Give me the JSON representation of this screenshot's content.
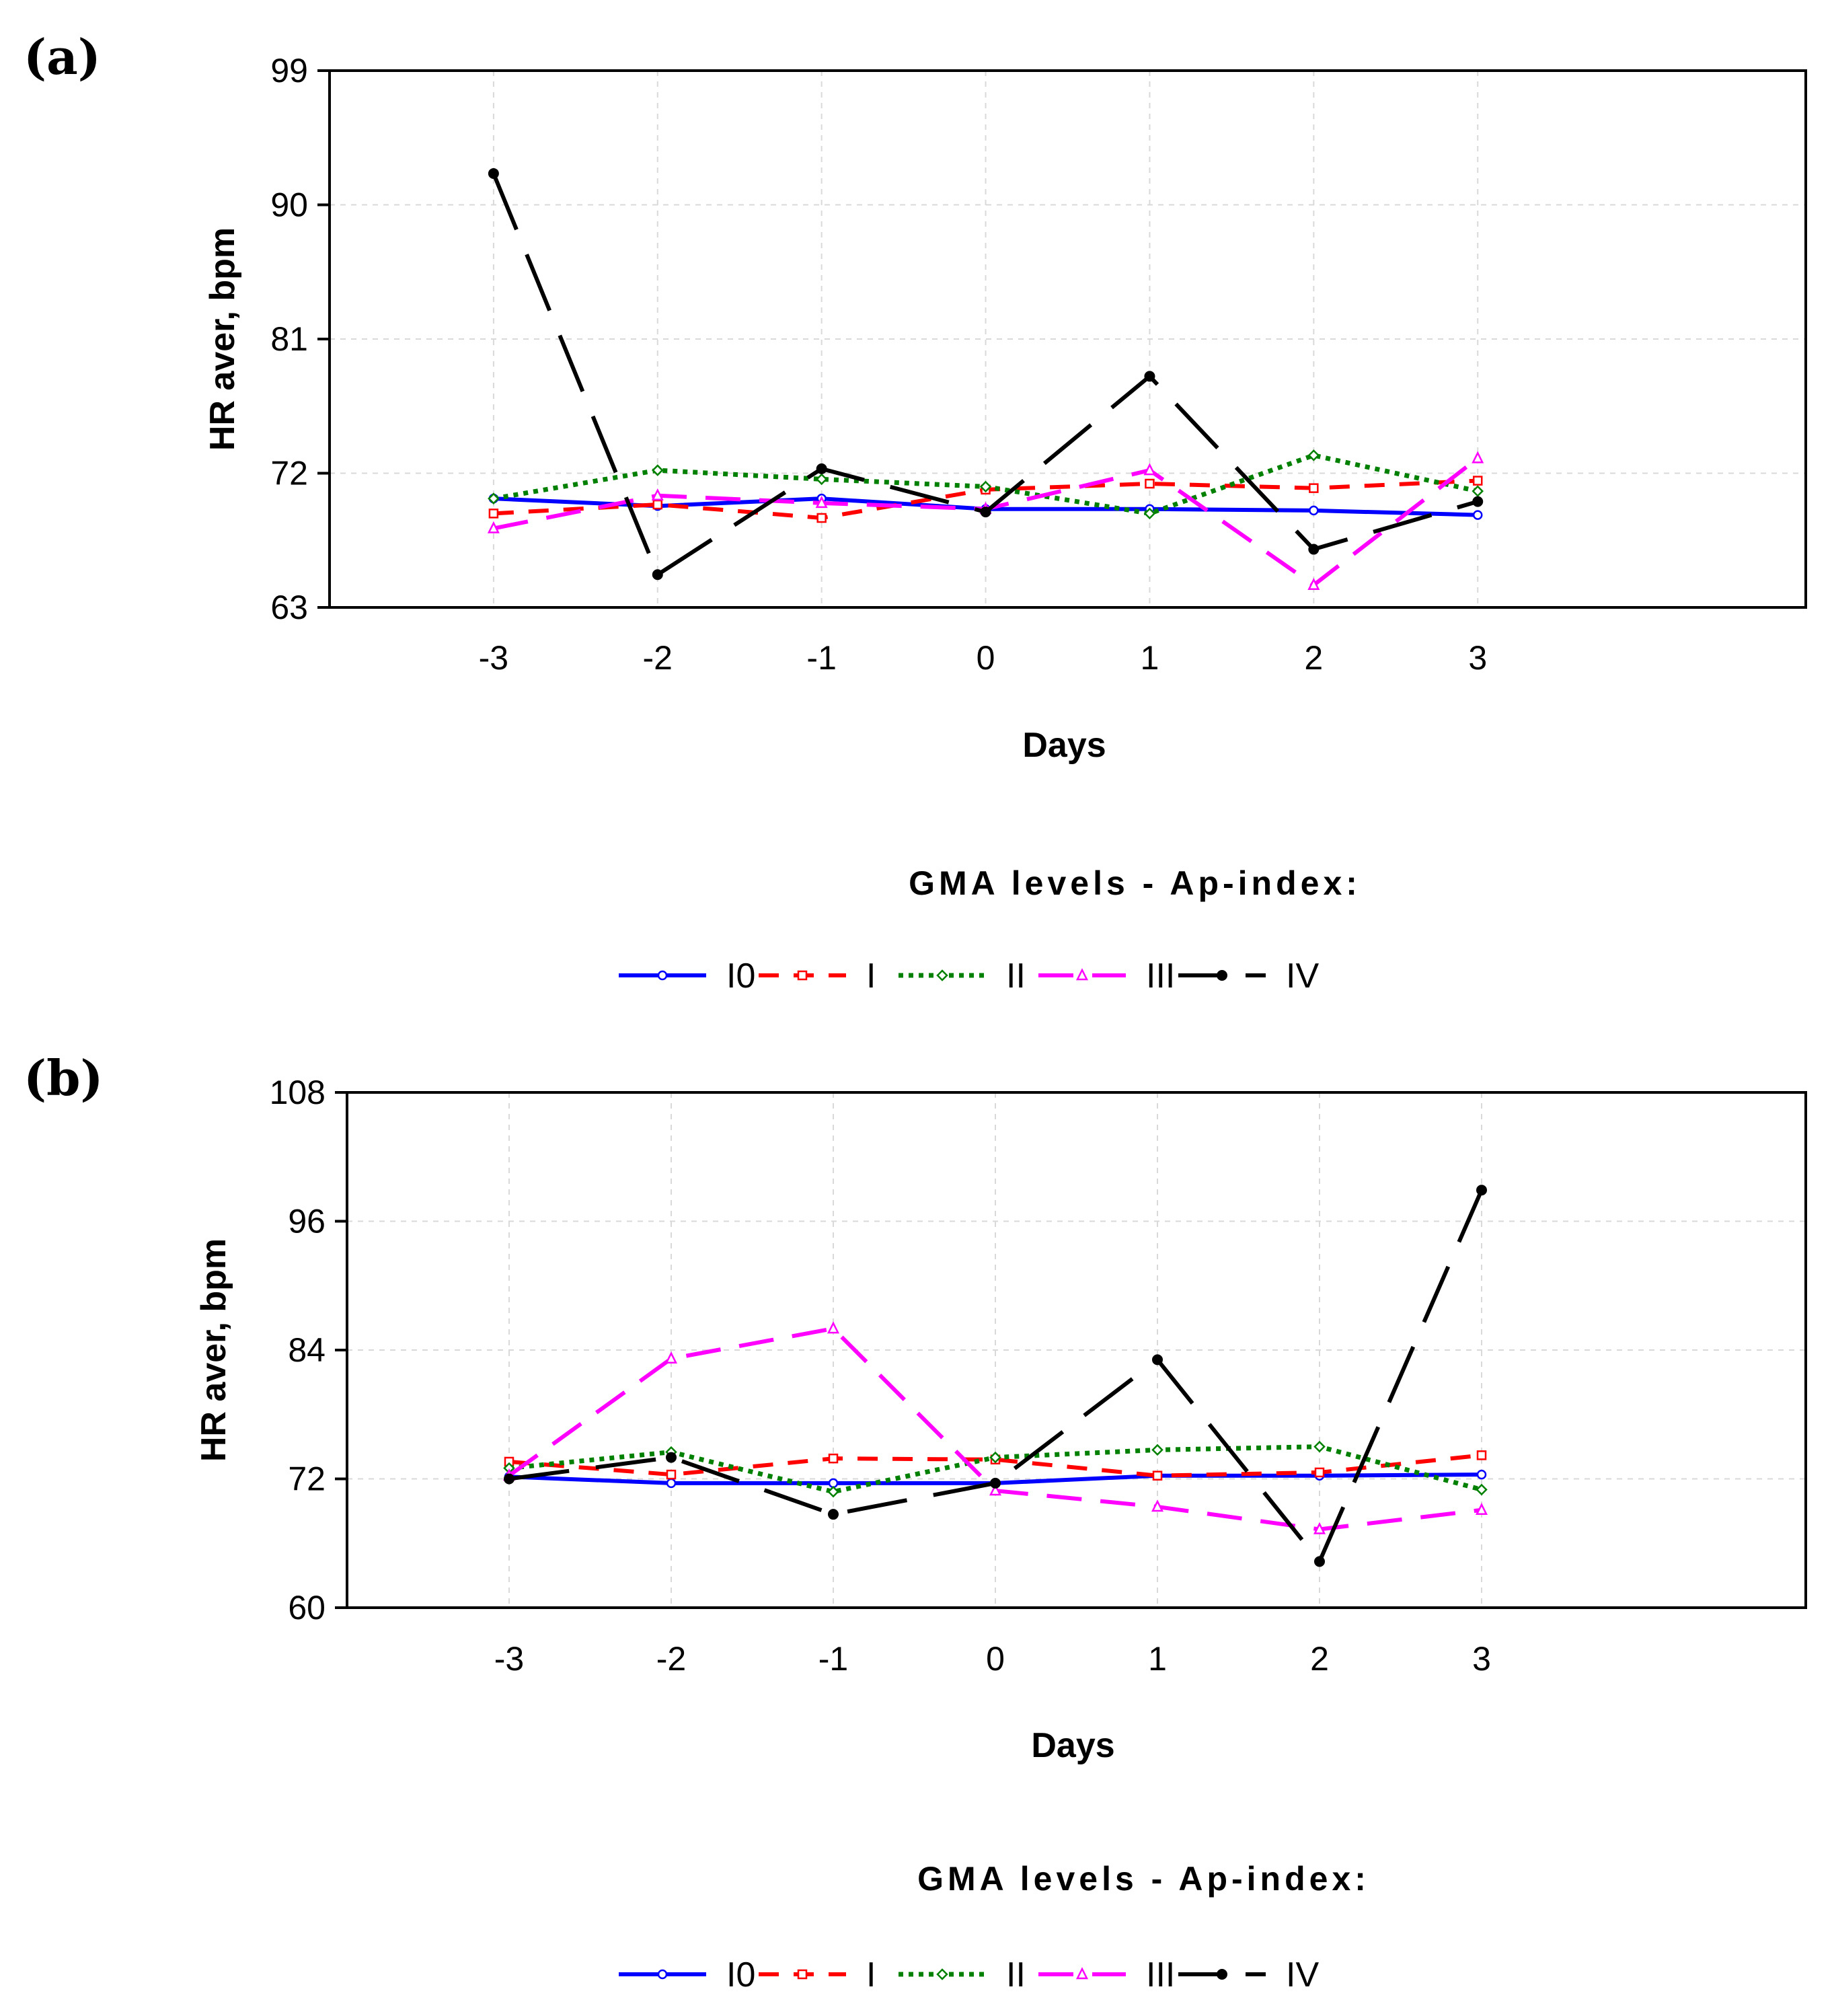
{
  "chart_data": [
    {
      "type": "line",
      "panel_label": "(a)",
      "xlabel": "Days",
      "ylabel": "HR aver, bpm",
      "x": [
        -3,
        -2,
        -1,
        0,
        1,
        2,
        3
      ],
      "x_tick_labels": [
        "-3",
        "-2",
        "-1",
        "0",
        "1",
        "2",
        "3"
      ],
      "xlim": [
        -4,
        5
      ],
      "y_ticks": [
        63,
        72,
        81,
        90,
        99
      ],
      "y_tick_labels": [
        "63",
        "72",
        "81",
        "90",
        "99"
      ],
      "ylim": [
        63,
        99
      ],
      "grid": true,
      "legend_title": "GMA levels - Ap-index:",
      "legend_position": "bottom",
      "series": [
        {
          "name": "I0",
          "color": "#0000ff",
          "values": [
            70.3,
            69.8,
            70.3,
            69.6,
            69.6,
            69.5,
            69.2
          ]
        },
        {
          "name": "I",
          "color": "#ff0000",
          "values": [
            69.3,
            69.9,
            69.0,
            70.9,
            71.3,
            71.0,
            71.5
          ]
        },
        {
          "name": "II",
          "color": "#008000",
          "values": [
            70.3,
            72.2,
            71.6,
            71.1,
            69.3,
            73.2,
            70.8
          ]
        },
        {
          "name": "III",
          "color": "#ff00ff",
          "values": [
            68.3,
            70.5,
            70.0,
            69.6,
            72.2,
            64.5,
            73.0
          ]
        },
        {
          "name": "IV",
          "color": "#000000",
          "values": [
            92.1,
            65.2,
            72.3,
            69.4,
            78.5,
            66.9,
            70.1
          ]
        }
      ]
    },
    {
      "type": "line",
      "panel_label": "(b)",
      "xlabel": "Days",
      "ylabel": "HR aver, bpm",
      "x": [
        -3,
        -2,
        -1,
        0,
        1,
        2,
        3
      ],
      "x_tick_labels": [
        "-3",
        "-2",
        "-1",
        "0",
        "1",
        "2",
        "3"
      ],
      "xlim": [
        -4,
        5
      ],
      "y_ticks": [
        60,
        72,
        84,
        96,
        108
      ],
      "y_tick_labels": [
        "60",
        "72",
        "84",
        "96",
        "108"
      ],
      "ylim": [
        60,
        108
      ],
      "grid": true,
      "legend_title": "GMA levels - Ap-index:",
      "legend_position": "bottom",
      "series": [
        {
          "name": "I0",
          "color": "#0000ff",
          "values": [
            72.2,
            71.6,
            71.6,
            71.6,
            72.3,
            72.3,
            72.4
          ]
        },
        {
          "name": "I",
          "color": "#ff0000",
          "values": [
            73.6,
            72.4,
            73.9,
            73.8,
            72.3,
            72.6,
            74.2
          ]
        },
        {
          "name": "II",
          "color": "#008000",
          "values": [
            73.0,
            74.5,
            70.8,
            74.0,
            74.7,
            75.0,
            71.0
          ]
        },
        {
          "name": "III",
          "color": "#ff00ff",
          "values": [
            72.3,
            83.2,
            86.0,
            70.9,
            69.4,
            67.3,
            69.1
          ]
        },
        {
          "name": "IV",
          "color": "#000000",
          "values": [
            72.0,
            74.0,
            68.7,
            71.6,
            83.1,
            64.3,
            98.9
          ]
        }
      ]
    }
  ]
}
